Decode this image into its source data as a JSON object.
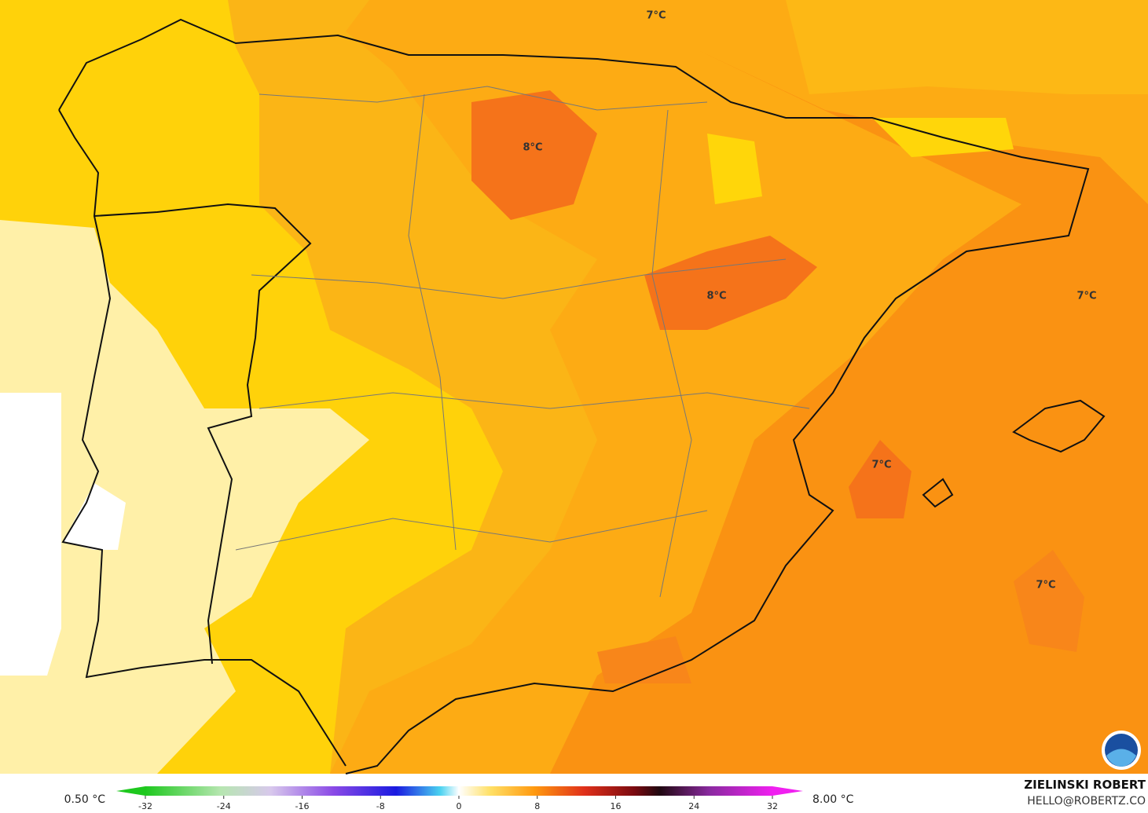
{
  "map": {
    "labels": [
      "7°C",
      "8°C",
      "8°C",
      "7°C",
      "7°C",
      "7°C"
    ]
  },
  "colorbar": {
    "min_label": "0.50 °C",
    "max_label": "8.00 °C",
    "range": [
      -32,
      32
    ],
    "ticks": [
      -32,
      -24,
      -16,
      -8,
      0,
      8,
      16,
      24,
      32
    ]
  },
  "credit": {
    "author": "ZIELINSKI ROBERT",
    "contact": "HELLO@ROBERTZ.CO"
  }
}
